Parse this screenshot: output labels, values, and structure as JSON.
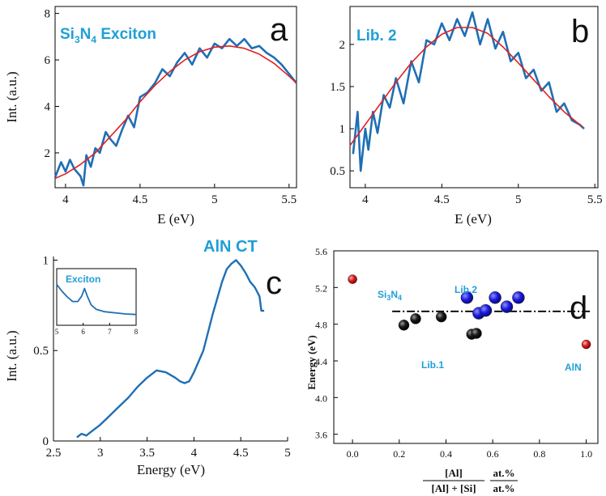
{
  "colors": {
    "data_line": "#1f6fb5",
    "fit_line": "#e02020",
    "callout": "#1f9fd6",
    "blue_point": "#1a1adf",
    "black_point": "#111111",
    "red_point": "#e02020"
  },
  "chart_data": [
    {
      "panel": "a",
      "type": "line",
      "label": "Si3N4 Exciton",
      "label_main": "Si",
      "label_sub1": "3",
      "label_mid": "N",
      "label_sub2": "4",
      "label_tail": " Exciton",
      "xlabel": "E (eV)",
      "ylabel": "Int. (a.u.)",
      "xlim": [
        3.93,
        5.55
      ],
      "ylim": [
        0.5,
        8.3
      ],
      "xticks": [
        "4",
        "4.5",
        "5",
        "5.5"
      ],
      "yticks": [
        "2",
        "4",
        "6",
        "8"
      ],
      "series": [
        {
          "role": "data",
          "x": [
            3.93,
            3.97,
            4.0,
            4.03,
            4.06,
            4.1,
            4.12,
            4.14,
            4.17,
            4.2,
            4.23,
            4.27,
            4.3,
            4.34,
            4.38,
            4.42,
            4.46,
            4.5,
            4.55,
            4.6,
            4.65,
            4.7,
            4.75,
            4.8,
            4.85,
            4.9,
            4.95,
            5.0,
            5.05,
            5.1,
            5.15,
            5.2,
            5.25,
            5.3,
            5.35,
            5.4,
            5.45,
            5.5,
            5.55
          ],
          "y": [
            0.95,
            1.6,
            1.2,
            1.7,
            1.3,
            1.0,
            0.6,
            1.9,
            1.4,
            2.2,
            2.0,
            2.9,
            2.6,
            2.3,
            3.0,
            3.6,
            3.1,
            4.4,
            4.6,
            5.0,
            5.6,
            5.3,
            5.9,
            6.3,
            5.8,
            6.5,
            6.1,
            6.7,
            6.5,
            6.9,
            6.6,
            6.9,
            6.5,
            6.6,
            6.3,
            6.1,
            5.8,
            5.4,
            5.0
          ]
        },
        {
          "role": "fit",
          "x": [
            3.93,
            4.0,
            4.1,
            4.2,
            4.3,
            4.4,
            4.5,
            4.6,
            4.7,
            4.8,
            4.9,
            5.0,
            5.1,
            5.2,
            5.3,
            5.4,
            5.5,
            5.55
          ],
          "y": [
            0.9,
            1.1,
            1.5,
            2.0,
            2.7,
            3.4,
            4.2,
            4.9,
            5.5,
            6.0,
            6.35,
            6.55,
            6.6,
            6.5,
            6.25,
            5.85,
            5.3,
            5.0
          ]
        }
      ]
    },
    {
      "panel": "b",
      "type": "line",
      "label": "Lib. 2",
      "xlabel": "E (eV)",
      "ylabel": "",
      "xlim": [
        3.9,
        5.52
      ],
      "ylim": [
        0.3,
        2.45
      ],
      "xticks": [
        "4",
        "4.5",
        "5",
        "5.5"
      ],
      "yticks": [
        "0.5",
        "1",
        "1.5",
        "2"
      ],
      "series": [
        {
          "role": "data",
          "x": [
            3.92,
            3.95,
            3.97,
            4.0,
            4.02,
            4.05,
            4.08,
            4.12,
            4.16,
            4.2,
            4.25,
            4.3,
            4.35,
            4.4,
            4.45,
            4.5,
            4.55,
            4.6,
            4.65,
            4.7,
            4.75,
            4.8,
            4.85,
            4.9,
            4.95,
            5.0,
            5.05,
            5.1,
            5.15,
            5.2,
            5.25,
            5.3,
            5.35,
            5.4,
            5.43
          ],
          "y": [
            0.7,
            1.2,
            0.5,
            1.0,
            0.75,
            1.2,
            0.95,
            1.4,
            1.25,
            1.6,
            1.3,
            1.8,
            1.55,
            2.05,
            2.0,
            2.25,
            2.05,
            2.3,
            2.1,
            2.38,
            2.0,
            2.3,
            1.95,
            2.15,
            1.8,
            1.9,
            1.6,
            1.7,
            1.45,
            1.55,
            1.2,
            1.3,
            1.1,
            1.05,
            1.0
          ]
        },
        {
          "role": "fit",
          "x": [
            3.9,
            4.0,
            4.1,
            4.2,
            4.3,
            4.4,
            4.5,
            4.6,
            4.7,
            4.8,
            4.9,
            5.0,
            5.1,
            5.2,
            5.3,
            5.42
          ],
          "y": [
            0.8,
            1.05,
            1.3,
            1.55,
            1.78,
            1.97,
            2.12,
            2.2,
            2.2,
            2.13,
            1.97,
            1.78,
            1.58,
            1.38,
            1.2,
            1.02
          ]
        }
      ]
    },
    {
      "panel": "c",
      "type": "line",
      "label": "AlN CT",
      "xlabel": "Energy (eV)",
      "ylabel": "Int. (a.u.)",
      "xlim": [
        2.5,
        5.0
      ],
      "ylim": [
        0,
        1.02
      ],
      "xticks": [
        "2.5",
        "3",
        "3.5",
        "4",
        "4.5",
        "5"
      ],
      "yticks": [
        "0",
        "0.5",
        "1"
      ],
      "series": [
        {
          "role": "data",
          "x": [
            2.75,
            2.8,
            2.85,
            2.9,
            3.0,
            3.1,
            3.2,
            3.3,
            3.4,
            3.5,
            3.6,
            3.7,
            3.8,
            3.85,
            3.9,
            3.95,
            4.0,
            4.1,
            4.2,
            4.3,
            4.35,
            4.4,
            4.45,
            4.5,
            4.55,
            4.6,
            4.65,
            4.7,
            4.72,
            4.75
          ],
          "y": [
            0.02,
            0.04,
            0.03,
            0.05,
            0.09,
            0.14,
            0.19,
            0.24,
            0.3,
            0.35,
            0.39,
            0.38,
            0.35,
            0.33,
            0.32,
            0.33,
            0.38,
            0.5,
            0.7,
            0.88,
            0.95,
            0.98,
            1.0,
            0.97,
            0.93,
            0.88,
            0.85,
            0.8,
            0.72,
            0.72
          ]
        }
      ],
      "inset": {
        "label": "Exciton",
        "xlim": [
          5,
          8
        ],
        "ylim": [
          0,
          1
        ],
        "xticks": [
          "5",
          "6",
          "7",
          "8"
        ],
        "x": [
          5.0,
          5.2,
          5.4,
          5.6,
          5.8,
          5.95,
          6.05,
          6.15,
          6.3,
          6.5,
          6.8,
          7.2,
          7.6,
          8.0
        ],
        "y": [
          0.72,
          0.6,
          0.5,
          0.42,
          0.42,
          0.52,
          0.65,
          0.52,
          0.36,
          0.28,
          0.24,
          0.22,
          0.2,
          0.19
        ]
      }
    },
    {
      "panel": "d",
      "type": "scatter",
      "xlabel_num": "[Al]",
      "xlabel_den": "[Al] + [Si]",
      "xlabel_unit_num": "at.%",
      "xlabel_unit_den": "at.%",
      "ylabel": "Energy (eV)",
      "xlim": [
        -0.08,
        1.05
      ],
      "ylim": [
        3.5,
        5.6
      ],
      "xticks": [
        "0.0",
        "0.2",
        "0.4",
        "0.6",
        "0.8",
        "1.0"
      ],
      "yticks": [
        "3.6",
        "4.0",
        "4.4",
        "4.8",
        "5.2",
        "5.6"
      ],
      "reference_line_y": 4.94,
      "reference_line_x": [
        0.17,
        1.02
      ],
      "annotations": {
        "si3n4_main": "Si",
        "si3n4_sub1": "3",
        "si3n4_mid": "N",
        "si3n4_sub2": "4",
        "lib1": "Lib.1",
        "lib2": "Lib.2",
        "aln": "AlN"
      },
      "series": [
        {
          "group": "end members",
          "x": [
            0.0,
            1.0
          ],
          "y": [
            5.29,
            4.58
          ]
        },
        {
          "group": "Lib.1",
          "x": [
            0.22,
            0.27,
            0.38,
            0.51,
            0.53
          ],
          "y": [
            4.79,
            4.86,
            4.88,
            4.69,
            4.7
          ]
        },
        {
          "group": "Lib.2",
          "x": [
            0.49,
            0.54,
            0.57,
            0.61,
            0.66,
            0.71
          ],
          "y": [
            5.09,
            4.92,
            4.95,
            5.09,
            4.99,
            5.09
          ]
        }
      ]
    }
  ]
}
